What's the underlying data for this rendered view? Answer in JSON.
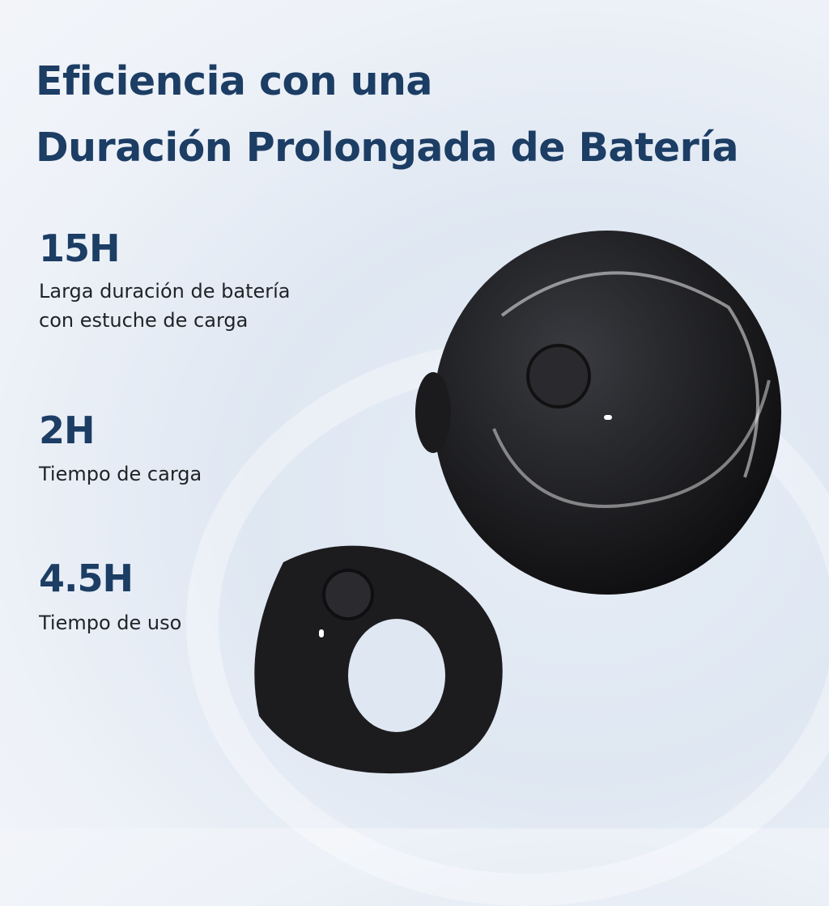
{
  "header": {
    "line1": "Eficiencia con una",
    "line2": "Duración Prolongada de Batería"
  },
  "stats": [
    {
      "value": "15H",
      "desc_line1": "Larga duración de batería",
      "desc_line2": "con estuche de carga"
    },
    {
      "value": "2H",
      "desc_line1": "Tiempo de carga"
    },
    {
      "value": "4.5H",
      "desc_line1": "Tiempo de uso"
    }
  ],
  "colors": {
    "heading": "#1c3d64",
    "text": "#202428",
    "product": "#1a1a1c"
  }
}
